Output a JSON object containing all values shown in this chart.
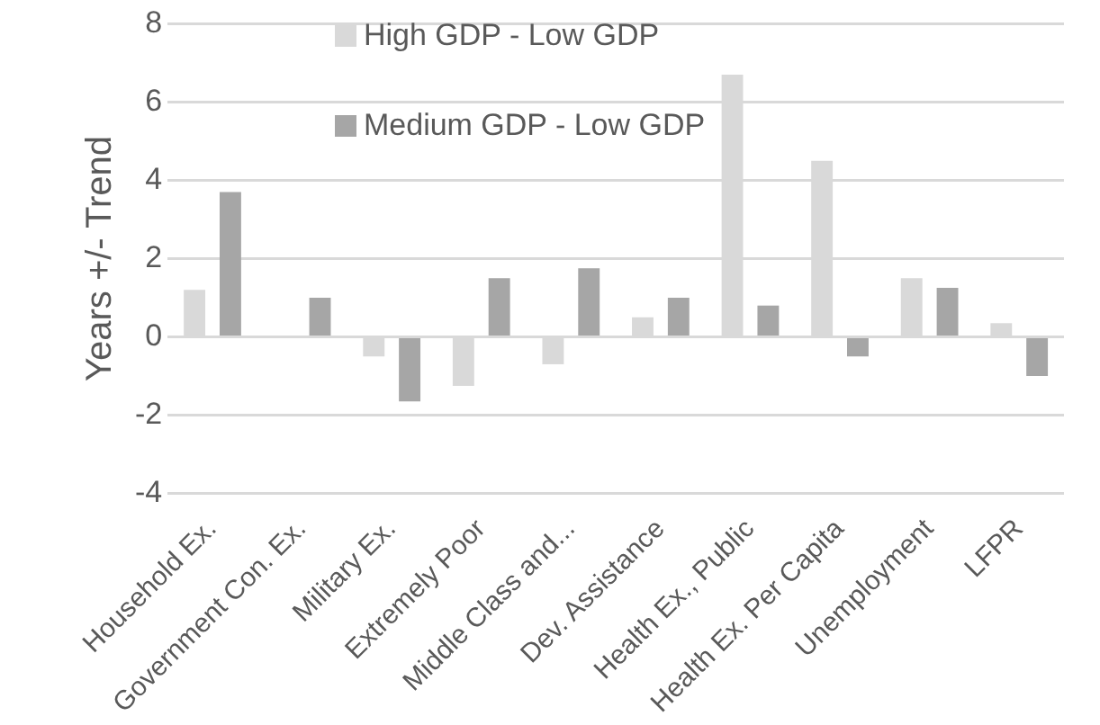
{
  "chart_data": {
    "type": "bar",
    "ylabel": "Years +/- Trend",
    "categories": [
      "Household Ex.",
      "Government Con. Ex.",
      "Military Ex.",
      "Extremely Poor",
      "Middle Class and...",
      "Dev. Assistance",
      "Health Ex., Public",
      "Health Ex. Per Capita",
      "Unemployment",
      "LFPR"
    ],
    "series": [
      {
        "name": "High GDP - Low GDP",
        "color": "#d9d9d9",
        "values": [
          1.2,
          0,
          -0.5,
          -1.25,
          -0.7,
          0.5,
          6.7,
          4.5,
          1.5,
          0.35
        ]
      },
      {
        "name": "Medium GDP - Low GDP",
        "color": "#a6a6a6",
        "values": [
          3.7,
          1.0,
          -1.65,
          1.5,
          1.75,
          1.0,
          0.8,
          -0.5,
          1.25,
          -1.0
        ]
      }
    ],
    "ylim": [
      -4,
      8
    ],
    "yticks": [
      -4,
      -2,
      0,
      2,
      4,
      6,
      8
    ],
    "grid": "y",
    "legend": "top left"
  }
}
